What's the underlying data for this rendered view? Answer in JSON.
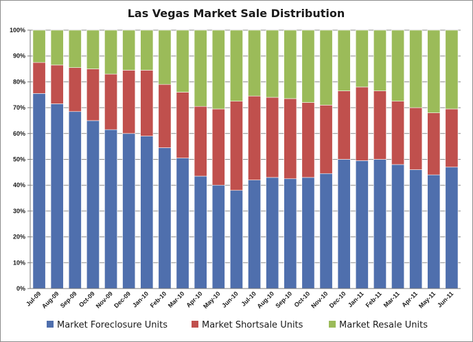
{
  "chart_data": {
    "type": "bar",
    "stacked": true,
    "title": "Las Vegas Market Sale Distribution",
    "xlabel": "",
    "ylabel": "",
    "ylim": [
      0,
      100
    ],
    "y_ticks": [
      "0%",
      "10%",
      "20%",
      "30%",
      "40%",
      "50%",
      "60%",
      "70%",
      "80%",
      "90%",
      "100%"
    ],
    "grid": true,
    "legend_position": "bottom",
    "categories": [
      "Jul-09",
      "Aug-09",
      "Sep-09",
      "Oct-09",
      "Nov-09",
      "Dec-09",
      "Jan-10",
      "Feb-10",
      "Mar-10",
      "Apr-10",
      "May-10",
      "Jun-10",
      "Jul-10",
      "Aug-10",
      "Sep-10",
      "Oct-10",
      "Nov-10",
      "Dec-10",
      "Jan-11",
      "Feb-11",
      "Mar-11",
      "Apr-11",
      "May-11",
      "Jun-11"
    ],
    "series": [
      {
        "name": "Market Foreclosure Units",
        "color": "#4f6fad",
        "values": [
          75.5,
          71.5,
          68.5,
          65,
          61.5,
          60,
          59,
          54.5,
          50.5,
          43.5,
          40,
          38,
          42,
          43,
          42.5,
          43,
          44.5,
          50,
          49.5,
          50,
          48,
          46,
          44,
          47
        ]
      },
      {
        "name": "Market Shortsale Units",
        "color": "#c0504d",
        "values": [
          12,
          15,
          17,
          20,
          21.5,
          24.5,
          25.5,
          24.5,
          25.5,
          27,
          29.5,
          34.5,
          32.5,
          31,
          31,
          29,
          26.5,
          26.5,
          28.5,
          26.5,
          24.5,
          24,
          24,
          22.5
        ]
      },
      {
        "name": "Market Resale Units",
        "color": "#9bbb59",
        "values": [
          12.5,
          13.5,
          14.5,
          15,
          17,
          15.5,
          15.5,
          21,
          24,
          29.5,
          30.5,
          27.5,
          25.5,
          26,
          26.5,
          28,
          29,
          23.5,
          22,
          23.5,
          27.5,
          30,
          32,
          30.5
        ]
      }
    ]
  }
}
